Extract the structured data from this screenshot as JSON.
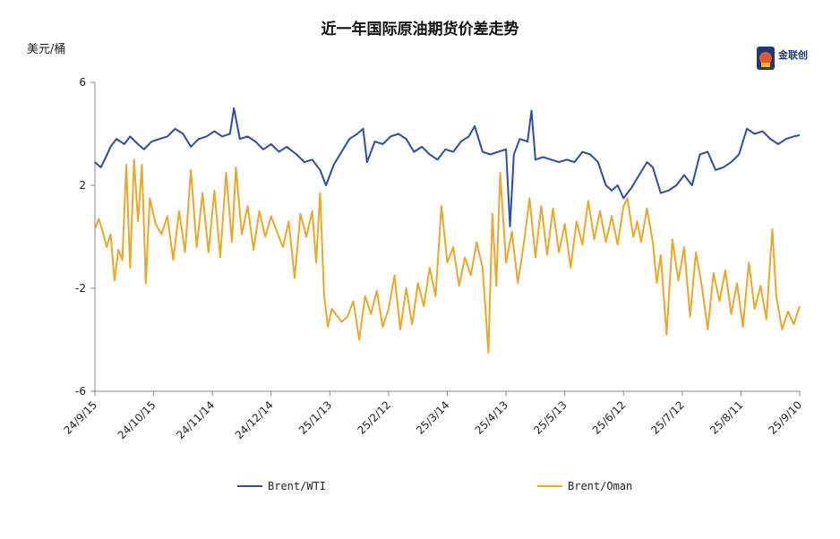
{
  "title": "近一年国际原油期货价差走势",
  "unit": "美元/桶",
  "logo": {
    "icon": "jinlianchuang-logo-icon",
    "text": "金联创"
  },
  "legend": {
    "placement": "bottom"
  },
  "chart_data": {
    "type": "line",
    "title": "近一年国际原油期货价差走势",
    "ylabel": "美元/桶",
    "xlabel": "",
    "ylim": [
      -6,
      6
    ],
    "yticks": [
      "6",
      "2",
      "-2",
      "-6"
    ],
    "xlim": [
      "2024-09-15",
      "2025-09-10"
    ],
    "xticks": [
      "24/9/15",
      "24/10/15",
      "24/11/14",
      "24/12/14",
      "25/1/13",
      "25/2/12",
      "25/3/14",
      "25/4/13",
      "25/5/13",
      "25/6/12",
      "25/7/12",
      "25/8/11",
      "25/9/10"
    ],
    "grid": false,
    "legend_placement": "bottom",
    "series": [
      {
        "name": "Brent/WTI",
        "color": "#2c4e9c",
        "points": [
          [
            "2024-09-15",
            2.9
          ],
          [
            "2024-09-18",
            2.7
          ],
          [
            "2024-09-20",
            3.0
          ],
          [
            "2024-09-23",
            3.5
          ],
          [
            "2024-09-26",
            3.8
          ],
          [
            "2024-09-30",
            3.6
          ],
          [
            "2024-10-03",
            3.9
          ],
          [
            "2024-10-07",
            3.6
          ],
          [
            "2024-10-10",
            3.4
          ],
          [
            "2024-10-14",
            3.7
          ],
          [
            "2024-10-18",
            3.8
          ],
          [
            "2024-10-22",
            3.9
          ],
          [
            "2024-10-26",
            4.2
          ],
          [
            "2024-10-30",
            4.0
          ],
          [
            "2024-11-03",
            3.5
          ],
          [
            "2024-11-07",
            3.8
          ],
          [
            "2024-11-11",
            3.9
          ],
          [
            "2024-11-15",
            4.1
          ],
          [
            "2024-11-19",
            3.9
          ],
          [
            "2024-11-23",
            4.0
          ],
          [
            "2024-11-25",
            5.0
          ],
          [
            "2024-11-28",
            3.8
          ],
          [
            "2024-12-02",
            3.9
          ],
          [
            "2024-12-06",
            3.7
          ],
          [
            "2024-12-10",
            3.4
          ],
          [
            "2024-12-14",
            3.6
          ],
          [
            "2024-12-18",
            3.3
          ],
          [
            "2024-12-22",
            3.5
          ],
          [
            "2024-12-27",
            3.2
          ],
          [
            "2024-12-31",
            2.9
          ],
          [
            "2025-01-04",
            3.0
          ],
          [
            "2025-01-08",
            2.6
          ],
          [
            "2025-01-11",
            2.0
          ],
          [
            "2025-01-15",
            2.8
          ],
          [
            "2025-01-19",
            3.3
          ],
          [
            "2025-01-23",
            3.8
          ],
          [
            "2025-01-27",
            4.0
          ],
          [
            "2025-01-30",
            4.2
          ],
          [
            "2025-02-01",
            2.9
          ],
          [
            "2025-02-05",
            3.7
          ],
          [
            "2025-02-09",
            3.6
          ],
          [
            "2025-02-13",
            3.9
          ],
          [
            "2025-02-17",
            4.0
          ],
          [
            "2025-02-21",
            3.8
          ],
          [
            "2025-02-25",
            3.3
          ],
          [
            "2025-03-01",
            3.5
          ],
          [
            "2025-03-05",
            3.2
          ],
          [
            "2025-03-09",
            3.0
          ],
          [
            "2025-03-13",
            3.4
          ],
          [
            "2025-03-17",
            3.3
          ],
          [
            "2025-03-21",
            3.7
          ],
          [
            "2025-03-25",
            3.9
          ],
          [
            "2025-03-28",
            4.3
          ],
          [
            "2025-04-01",
            3.3
          ],
          [
            "2025-04-05",
            3.2
          ],
          [
            "2025-04-09",
            3.3
          ],
          [
            "2025-04-13",
            3.4
          ],
          [
            "2025-04-15",
            0.4
          ],
          [
            "2025-04-17",
            3.2
          ],
          [
            "2025-04-20",
            3.8
          ],
          [
            "2025-04-24",
            3.7
          ],
          [
            "2025-04-26",
            4.9
          ],
          [
            "2025-04-28",
            3.0
          ],
          [
            "2025-05-02",
            3.1
          ],
          [
            "2025-05-06",
            3.0
          ],
          [
            "2025-05-10",
            2.9
          ],
          [
            "2025-05-14",
            3.0
          ],
          [
            "2025-05-18",
            2.9
          ],
          [
            "2025-05-22",
            3.3
          ],
          [
            "2025-05-26",
            3.2
          ],
          [
            "2025-05-30",
            2.9
          ],
          [
            "2025-06-03",
            2.0
          ],
          [
            "2025-06-06",
            1.8
          ],
          [
            "2025-06-09",
            2.0
          ],
          [
            "2025-06-12",
            1.5
          ],
          [
            "2025-06-16",
            1.9
          ],
          [
            "2025-06-20",
            2.4
          ],
          [
            "2025-06-24",
            2.9
          ],
          [
            "2025-06-27",
            2.7
          ],
          [
            "2025-07-01",
            1.7
          ],
          [
            "2025-07-05",
            1.8
          ],
          [
            "2025-07-09",
            2.0
          ],
          [
            "2025-07-13",
            2.4
          ],
          [
            "2025-07-17",
            2.0
          ],
          [
            "2025-07-21",
            3.2
          ],
          [
            "2025-07-25",
            3.3
          ],
          [
            "2025-07-29",
            2.6
          ],
          [
            "2025-08-02",
            2.7
          ],
          [
            "2025-08-06",
            2.9
          ],
          [
            "2025-08-10",
            3.2
          ],
          [
            "2025-08-14",
            4.2
          ],
          [
            "2025-08-18",
            4.0
          ],
          [
            "2025-08-22",
            4.1
          ],
          [
            "2025-08-26",
            3.8
          ],
          [
            "2025-08-30",
            3.6
          ],
          [
            "2025-09-03",
            3.8
          ],
          [
            "2025-09-07",
            3.9
          ],
          [
            "2025-09-10",
            3.95
          ]
        ]
      },
      {
        "name": "Brent/Oman",
        "color": "#e8a830",
        "points": [
          [
            "2024-09-15",
            0.3
          ],
          [
            "2024-09-17",
            0.7
          ],
          [
            "2024-09-19",
            0.2
          ],
          [
            "2024-09-21",
            -0.4
          ],
          [
            "2024-09-23",
            0.1
          ],
          [
            "2024-09-25",
            -1.7
          ],
          [
            "2024-09-27",
            -0.5
          ],
          [
            "2024-09-29",
            -0.9
          ],
          [
            "2024-10-01",
            2.8
          ],
          [
            "2024-10-03",
            -1.2
          ],
          [
            "2024-10-05",
            3.0
          ],
          [
            "2024-10-07",
            0.6
          ],
          [
            "2024-10-09",
            2.8
          ],
          [
            "2024-10-11",
            -1.8
          ],
          [
            "2024-10-13",
            1.5
          ],
          [
            "2024-10-16",
            0.5
          ],
          [
            "2024-10-19",
            0.1
          ],
          [
            "2024-10-22",
            0.8
          ],
          [
            "2024-10-25",
            -0.9
          ],
          [
            "2024-10-28",
            1.0
          ],
          [
            "2024-10-31",
            -0.6
          ],
          [
            "2024-11-03",
            2.6
          ],
          [
            "2024-11-06",
            -0.4
          ],
          [
            "2024-11-09",
            1.7
          ],
          [
            "2024-11-12",
            -0.6
          ],
          [
            "2024-11-15",
            1.8
          ],
          [
            "2024-11-18",
            -0.8
          ],
          [
            "2024-11-21",
            2.5
          ],
          [
            "2024-11-24",
            -0.2
          ],
          [
            "2024-11-26",
            2.7
          ],
          [
            "2024-11-29",
            0.1
          ],
          [
            "2024-12-02",
            1.2
          ],
          [
            "2024-12-05",
            -0.5
          ],
          [
            "2024-12-08",
            1.0
          ],
          [
            "2024-12-11",
            0.0
          ],
          [
            "2024-12-14",
            0.8
          ],
          [
            "2024-12-17",
            0.2
          ],
          [
            "2024-12-20",
            -0.4
          ],
          [
            "2024-12-23",
            0.6
          ],
          [
            "2024-12-26",
            -1.6
          ],
          [
            "2024-12-29",
            0.9
          ],
          [
            "2025-01-01",
            0.0
          ],
          [
            "2025-01-04",
            1.0
          ],
          [
            "2025-01-06",
            -1.0
          ],
          [
            "2025-01-08",
            1.7
          ],
          [
            "2025-01-10",
            -2.2
          ],
          [
            "2025-01-12",
            -3.5
          ],
          [
            "2025-01-14",
            -2.8
          ],
          [
            "2025-01-16",
            -3.0
          ],
          [
            "2025-01-19",
            -3.3
          ],
          [
            "2025-01-22",
            -3.1
          ],
          [
            "2025-01-25",
            -2.5
          ],
          [
            "2025-01-28",
            -4.0
          ],
          [
            "2025-01-31",
            -2.3
          ],
          [
            "2025-02-03",
            -3.0
          ],
          [
            "2025-02-06",
            -2.1
          ],
          [
            "2025-02-09",
            -3.5
          ],
          [
            "2025-02-12",
            -2.8
          ],
          [
            "2025-02-15",
            -1.5
          ],
          [
            "2025-02-18",
            -3.6
          ],
          [
            "2025-02-21",
            -2.0
          ],
          [
            "2025-02-24",
            -3.4
          ],
          [
            "2025-02-27",
            -1.8
          ],
          [
            "2025-03-02",
            -2.7
          ],
          [
            "2025-03-05",
            -1.2
          ],
          [
            "2025-03-08",
            -2.3
          ],
          [
            "2025-03-11",
            1.2
          ],
          [
            "2025-03-14",
            -1.0
          ],
          [
            "2025-03-17",
            -0.4
          ],
          [
            "2025-03-20",
            -1.9
          ],
          [
            "2025-03-23",
            -0.8
          ],
          [
            "2025-03-26",
            -1.5
          ],
          [
            "2025-03-29",
            -0.2
          ],
          [
            "2025-04-01",
            -1.2
          ],
          [
            "2025-04-04",
            -4.5
          ],
          [
            "2025-04-06",
            0.9
          ],
          [
            "2025-04-08",
            -1.9
          ],
          [
            "2025-04-10",
            2.5
          ],
          [
            "2025-04-13",
            -1.0
          ],
          [
            "2025-04-16",
            0.2
          ],
          [
            "2025-04-19",
            -1.8
          ],
          [
            "2025-04-22",
            -0.3
          ],
          [
            "2025-04-25",
            1.5
          ],
          [
            "2025-04-28",
            -0.8
          ],
          [
            "2025-05-01",
            1.2
          ],
          [
            "2025-05-04",
            -0.7
          ],
          [
            "2025-05-07",
            1.1
          ],
          [
            "2025-05-10",
            -0.6
          ],
          [
            "2025-05-13",
            0.5
          ],
          [
            "2025-05-16",
            -1.2
          ],
          [
            "2025-05-19",
            0.6
          ],
          [
            "2025-05-22",
            -0.3
          ],
          [
            "2025-05-25",
            1.4
          ],
          [
            "2025-05-28",
            -0.1
          ],
          [
            "2025-05-31",
            1.0
          ],
          [
            "2025-06-03",
            -0.2
          ],
          [
            "2025-06-06",
            0.8
          ],
          [
            "2025-06-09",
            -0.3
          ],
          [
            "2025-06-12",
            1.2
          ],
          [
            "2025-06-14",
            1.5
          ],
          [
            "2025-06-17",
            0.0
          ],
          [
            "2025-06-19",
            0.6
          ],
          [
            "2025-06-21",
            -0.2
          ],
          [
            "2025-06-24",
            1.1
          ],
          [
            "2025-06-27",
            -0.2
          ],
          [
            "2025-06-29",
            -1.8
          ],
          [
            "2025-07-01",
            -0.7
          ],
          [
            "2025-07-04",
            -3.8
          ],
          [
            "2025-07-07",
            -0.1
          ],
          [
            "2025-07-10",
            -1.7
          ],
          [
            "2025-07-13",
            -0.4
          ],
          [
            "2025-07-16",
            -3.1
          ],
          [
            "2025-07-19",
            -0.6
          ],
          [
            "2025-07-22",
            -1.9
          ],
          [
            "2025-07-25",
            -3.6
          ],
          [
            "2025-07-28",
            -1.4
          ],
          [
            "2025-07-31",
            -2.5
          ],
          [
            "2025-08-03",
            -1.3
          ],
          [
            "2025-08-06",
            -3.0
          ],
          [
            "2025-08-09",
            -1.8
          ],
          [
            "2025-08-12",
            -3.5
          ],
          [
            "2025-08-15",
            -1.0
          ],
          [
            "2025-08-18",
            -2.8
          ],
          [
            "2025-08-21",
            -1.9
          ],
          [
            "2025-08-24",
            -3.2
          ],
          [
            "2025-08-27",
            0.3
          ],
          [
            "2025-08-29",
            -2.3
          ],
          [
            "2025-09-01",
            -3.6
          ],
          [
            "2025-09-04",
            -2.9
          ],
          [
            "2025-09-07",
            -3.4
          ],
          [
            "2025-09-10",
            -2.7
          ]
        ]
      }
    ]
  }
}
